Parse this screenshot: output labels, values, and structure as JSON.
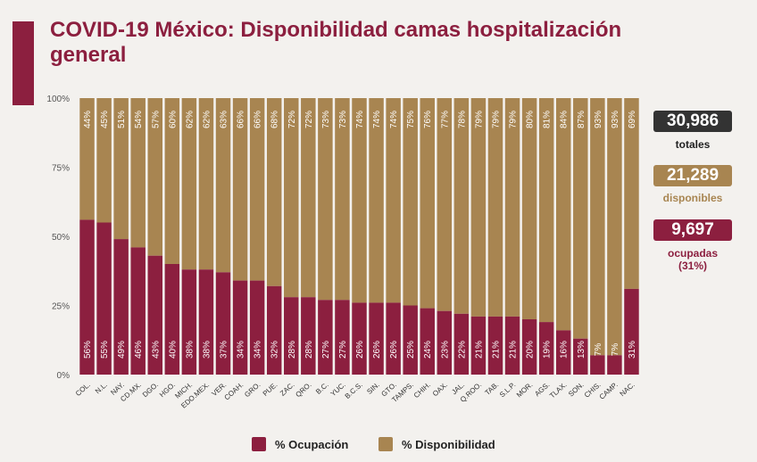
{
  "title": "COVID-19 México: Disponibilidad camas hospitalización general",
  "colors": {
    "accent": "#8c1f3f",
    "ocupacion": "#8c1f3f",
    "disponibilidad": "#a88551"
  },
  "stats": {
    "total": {
      "value": "30,986",
      "label": "totales"
    },
    "available": {
      "value": "21,289",
      "label": "disponibles"
    },
    "occupied": {
      "value": "9,697",
      "label": "ocupadas",
      "sublabel": "(31%)"
    }
  },
  "legend": {
    "occupied": "% Ocupación",
    "available": "% Disponibilidad"
  },
  "chart_data": {
    "type": "bar",
    "stacked": true,
    "ylim": [
      0,
      100
    ],
    "yticks": [
      "0%",
      "25%",
      "50%",
      "75%",
      "100%"
    ],
    "categories": [
      "COL.",
      "N.L.",
      "NAY.",
      "CD.MX.",
      "DGO.",
      "HGO.",
      "MICH.",
      "EDO.MEX.",
      "VER.",
      "COAH.",
      "GRO.",
      "PUE.",
      "ZAC.",
      "QRO.",
      "B.C.",
      "YUC.",
      "B.C.S.",
      "SIN.",
      "GTO.",
      "TAMPS.",
      "CHIH.",
      "OAX.",
      "JAL.",
      "Q.ROO.",
      "TAB.",
      "S.L.P.",
      "MOR.",
      "AGS.",
      "TLAX.",
      "SON.",
      "CHIS.",
      "CAMP.",
      "NAC."
    ],
    "series": [
      {
        "name": "% Ocupación",
        "values": [
          56,
          55,
          49,
          46,
          43,
          40,
          38,
          38,
          37,
          34,
          34,
          32,
          28,
          28,
          27,
          27,
          26,
          26,
          26,
          25,
          24,
          23,
          22,
          21,
          21,
          21,
          20,
          19,
          16,
          13,
          7,
          7,
          31
        ]
      },
      {
        "name": "% Disponibilidad",
        "values": [
          44,
          45,
          51,
          54,
          57,
          60,
          62,
          62,
          63,
          66,
          66,
          68,
          72,
          72,
          73,
          73,
          74,
          74,
          74,
          75,
          76,
          77,
          78,
          79,
          79,
          79,
          80,
          81,
          84,
          87,
          93,
          93,
          69
        ]
      }
    ],
    "legend_position": "bottom"
  }
}
